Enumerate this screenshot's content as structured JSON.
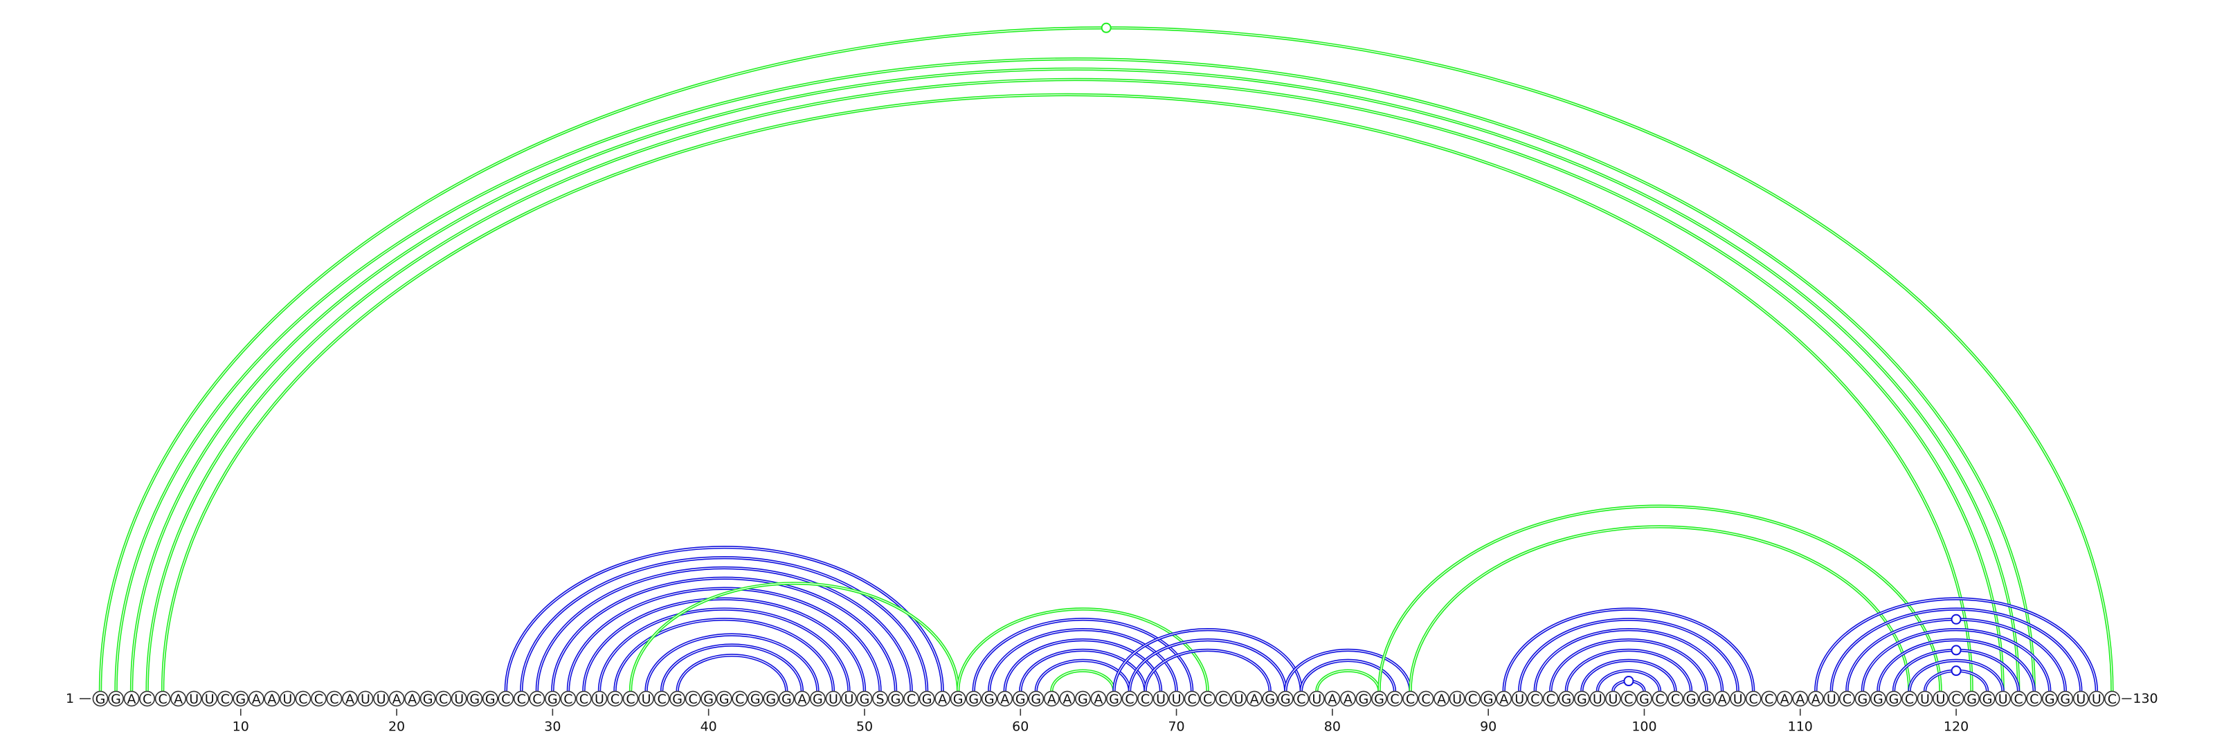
{
  "sequence": "GGACCAUUCGAAUCCCAUUAAGCUGGCCCGCCUCCUCGCGGCGGGAGUUGSGCGAGGGAGGAAGAGCCUUCCCUAGGCUAAGGCCCAUCGAUCCGGUUCGCCGGAUCCAAAUCGGGCUUCGGUCCGGUUC",
  "start_label": "1",
  "end_label": "130",
  "ticks": [
    {
      "position": 10,
      "label": "10"
    },
    {
      "position": 20,
      "label": "20"
    },
    {
      "position": 30,
      "label": "30"
    },
    {
      "position": 40,
      "label": "40"
    },
    {
      "position": 50,
      "label": "50"
    },
    {
      "position": 60,
      "label": "60"
    },
    {
      "position": 70,
      "label": "70"
    },
    {
      "position": 80,
      "label": "80"
    },
    {
      "position": 90,
      "label": "90"
    },
    {
      "position": 100,
      "label": "100"
    },
    {
      "position": 110,
      "label": "110"
    },
    {
      "position": 120,
      "label": "120"
    }
  ],
  "colors": {
    "green": "#22ee22",
    "blue": "#1111dd"
  },
  "arcs": [
    {
      "i": 1,
      "j": 130,
      "color": "green",
      "marker": true
    },
    {
      "i": 2,
      "j": 125,
      "color": "green"
    },
    {
      "i": 3,
      "j": 124,
      "color": "green"
    },
    {
      "i": 4,
      "j": 123,
      "color": "green"
    },
    {
      "i": 5,
      "j": 121,
      "color": "green"
    },
    {
      "i": 27,
      "j": 55,
      "color": "blue"
    },
    {
      "i": 28,
      "j": 54,
      "color": "blue"
    },
    {
      "i": 29,
      "j": 53,
      "color": "blue"
    },
    {
      "i": 30,
      "j": 52,
      "color": "blue"
    },
    {
      "i": 31,
      "j": 51,
      "color": "blue"
    },
    {
      "i": 32,
      "j": 50,
      "color": "blue"
    },
    {
      "i": 33,
      "j": 49,
      "color": "blue"
    },
    {
      "i": 34,
      "j": 48,
      "color": "blue"
    },
    {
      "i": 36,
      "j": 47,
      "color": "blue"
    },
    {
      "i": 37,
      "j": 46,
      "color": "blue"
    },
    {
      "i": 38,
      "j": 45,
      "color": "blue"
    },
    {
      "i": 35,
      "j": 56,
      "color": "green"
    },
    {
      "i": 56,
      "j": 72,
      "color": "green"
    },
    {
      "i": 57,
      "j": 71,
      "color": "blue"
    },
    {
      "i": 58,
      "j": 70,
      "color": "blue"
    },
    {
      "i": 59,
      "j": 69,
      "color": "blue"
    },
    {
      "i": 60,
      "j": 68,
      "color": "blue"
    },
    {
      "i": 61,
      "j": 67,
      "color": "blue"
    },
    {
      "i": 62,
      "j": 66,
      "color": "green"
    },
    {
      "i": 66,
      "j": 78,
      "color": "blue"
    },
    {
      "i": 67,
      "j": 77,
      "color": "blue"
    },
    {
      "i": 68,
      "j": 76,
      "color": "blue"
    },
    {
      "i": 77,
      "j": 85,
      "color": "blue"
    },
    {
      "i": 78,
      "j": 84,
      "color": "blue"
    },
    {
      "i": 79,
      "j": 83,
      "color": "green"
    },
    {
      "i": 83,
      "j": 119,
      "color": "green"
    },
    {
      "i": 85,
      "j": 117,
      "color": "green"
    },
    {
      "i": 91,
      "j": 107,
      "color": "blue"
    },
    {
      "i": 92,
      "j": 106,
      "color": "blue"
    },
    {
      "i": 93,
      "j": 105,
      "color": "blue"
    },
    {
      "i": 94,
      "j": 104,
      "color": "blue"
    },
    {
      "i": 95,
      "j": 103,
      "color": "blue"
    },
    {
      "i": 96,
      "j": 102,
      "color": "blue"
    },
    {
      "i": 97,
      "j": 101,
      "color": "blue"
    },
    {
      "i": 98,
      "j": 100,
      "color": "blue",
      "marker": true
    },
    {
      "i": 111,
      "j": 129,
      "color": "blue"
    },
    {
      "i": 112,
      "j": 128,
      "color": "blue"
    },
    {
      "i": 113,
      "j": 127,
      "color": "blue",
      "marker": true
    },
    {
      "i": 114,
      "j": 126,
      "color": "blue"
    },
    {
      "i": 115,
      "j": 125,
      "color": "blue"
    },
    {
      "i": 116,
      "j": 124,
      "color": "blue",
      "marker": true
    },
    {
      "i": 117,
      "j": 123,
      "color": "blue"
    },
    {
      "i": 118,
      "j": 122,
      "color": "blue",
      "marker": true
    }
  ]
}
